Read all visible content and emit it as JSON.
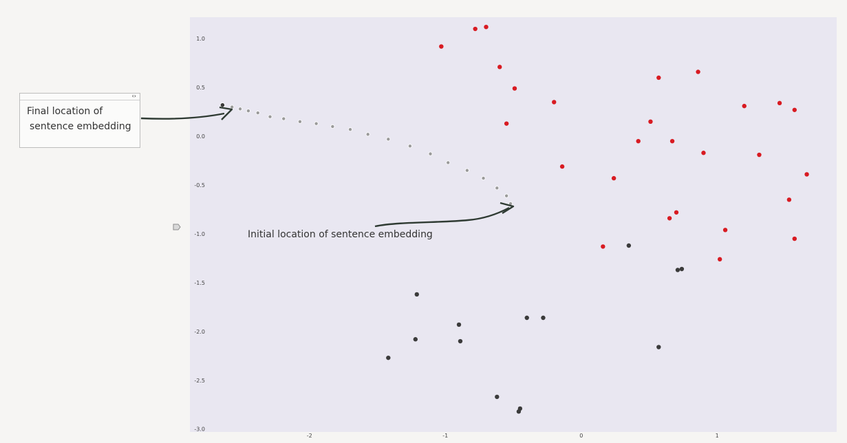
{
  "annotations": {
    "final_label_line1": "Final location of",
    "final_label_line2": "sentence embedding",
    "initial_label": "Initial location of sentence embedding",
    "expand_glyph": "‹›"
  },
  "colors": {
    "background": "#f6f5f3",
    "plot_background": "#e9e7f1",
    "red_points": "#d81b22",
    "dark_points": "#3b3b3b",
    "trajectory_points": "#9a9a9a",
    "arrow": "#2f3b33"
  },
  "chart_data": {
    "type": "scatter",
    "xlim": [
      -2.88,
      1.88
    ],
    "ylim": [
      -3.03,
      1.22
    ],
    "x_ticks": [
      -2,
      -1,
      0,
      1
    ],
    "y_ticks": [
      1.0,
      0.5,
      0.0,
      -0.5,
      -1.0,
      -1.5,
      -2.0,
      -2.5,
      -3.0
    ],
    "grid": false,
    "series": [
      {
        "color": "red",
        "points": [
          [
            -1.03,
            0.92
          ],
          [
            -0.78,
            1.1
          ],
          [
            -0.7,
            1.12
          ],
          [
            -0.6,
            0.71
          ],
          [
            -0.49,
            0.49
          ],
          [
            -0.55,
            0.13
          ],
          [
            -0.2,
            0.35
          ],
          [
            -0.14,
            -0.31
          ],
          [
            0.57,
            0.6
          ],
          [
            0.51,
            0.15
          ],
          [
            0.42,
            -0.05
          ],
          [
            0.67,
            -0.05
          ],
          [
            0.24,
            -0.43
          ],
          [
            0.86,
            0.66
          ],
          [
            0.9,
            -0.17
          ],
          [
            1.2,
            0.31
          ],
          [
            1.31,
            -0.19
          ],
          [
            1.46,
            0.34
          ],
          [
            1.57,
            0.27
          ],
          [
            1.66,
            -0.39
          ],
          [
            1.53,
            -0.65
          ],
          [
            0.7,
            -0.78
          ],
          [
            0.65,
            -0.84
          ],
          [
            1.06,
            -0.96
          ],
          [
            1.57,
            -1.05
          ],
          [
            0.16,
            -1.13
          ],
          [
            1.02,
            -1.26
          ]
        ]
      },
      {
        "color": "dark",
        "points": [
          [
            0.35,
            -1.12
          ],
          [
            0.71,
            -1.37
          ],
          [
            0.74,
            -1.36
          ],
          [
            0.57,
            -2.16
          ],
          [
            -1.21,
            -1.62
          ],
          [
            -0.9,
            -1.93
          ],
          [
            -0.89,
            -2.1
          ],
          [
            -1.22,
            -2.08
          ],
          [
            -1.42,
            -2.27
          ],
          [
            -0.4,
            -1.86
          ],
          [
            -0.28,
            -1.86
          ],
          [
            -0.62,
            -2.67
          ],
          [
            -0.45,
            -2.79
          ],
          [
            -0.46,
            -2.82
          ]
        ]
      },
      {
        "color": "trajectory",
        "points": [
          [
            -2.64,
            0.32
          ],
          [
            -2.57,
            0.3
          ],
          [
            -2.51,
            0.28
          ],
          [
            -2.45,
            0.26
          ],
          [
            -2.38,
            0.24
          ],
          [
            -2.29,
            0.2
          ],
          [
            -2.19,
            0.18
          ],
          [
            -2.07,
            0.15
          ],
          [
            -1.95,
            0.13
          ],
          [
            -1.83,
            0.1
          ],
          [
            -1.7,
            0.07
          ],
          [
            -1.57,
            0.02
          ],
          [
            -1.42,
            -0.03
          ],
          [
            -1.26,
            -0.1
          ],
          [
            -1.11,
            -0.18
          ],
          [
            -0.98,
            -0.27
          ],
          [
            -0.84,
            -0.35
          ],
          [
            -0.72,
            -0.43
          ],
          [
            -0.62,
            -0.53
          ],
          [
            -0.55,
            -0.61
          ],
          [
            -0.52,
            -0.69
          ]
        ]
      }
    ]
  }
}
